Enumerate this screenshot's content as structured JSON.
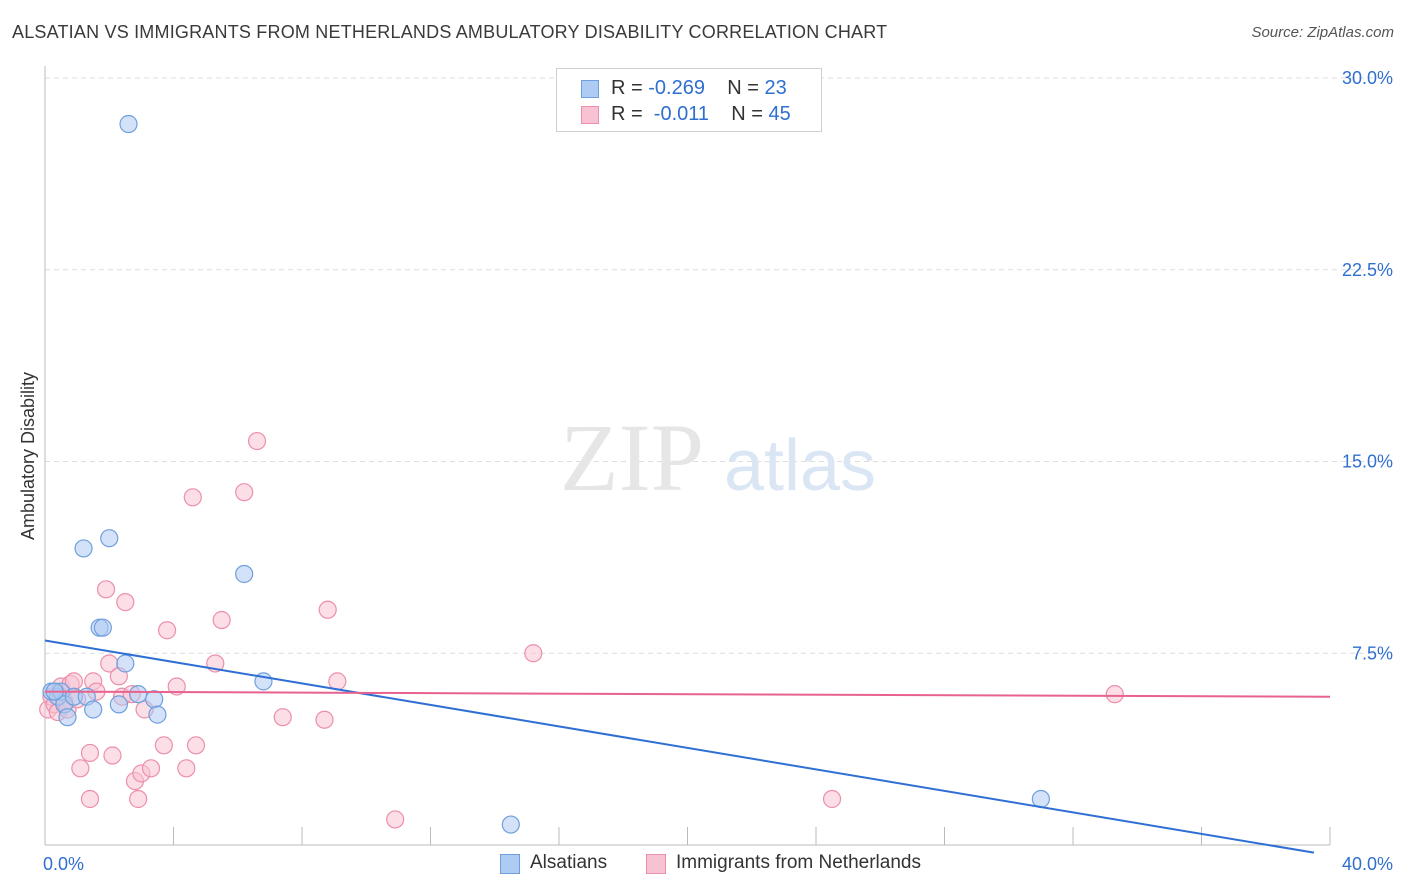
{
  "title": "ALSATIAN VS IMMIGRANTS FROM NETHERLANDS AMBULATORY DISABILITY CORRELATION CHART",
  "source": "Source: ZipAtlas.com",
  "watermark": {
    "zip": "ZIP",
    "atlas": "atlas"
  },
  "colors": {
    "blue_fill": "#aecbf3",
    "blue_stroke": "#6f9fdc",
    "blue_line": "#2e6fd4",
    "pink_fill": "#f8c2d2",
    "pink_stroke": "#ec8fab",
    "pink_line": "#e8628f",
    "tick_label": "#2f6fd0",
    "grid": "#dddddd"
  },
  "legend": {
    "rows": [
      {
        "r_label": "R = ",
        "r_value": "-0.269",
        "n_label": "N = ",
        "n_value": "23"
      },
      {
        "r_label": "R = ",
        "r_value": " -0.011",
        "n_label": "N = ",
        "n_value": "45"
      }
    ]
  },
  "bottom_legend": {
    "series1": "Alsatians",
    "series2": "Immigrants from Netherlands"
  },
  "chart_data": {
    "type": "scatter",
    "title": "ALSATIAN VS IMMIGRANTS FROM NETHERLANDS AMBULATORY DISABILITY CORRELATION CHART",
    "xlabel": "",
    "ylabel": "Ambulatory Disability",
    "xlim": [
      0,
      40
    ],
    "ylim": [
      0,
      30
    ],
    "x_tick_labels": [
      "0.0%",
      "40.0%"
    ],
    "y_ticks": [
      7.5,
      15.0,
      22.5,
      30.0
    ],
    "y_tick_labels": [
      "7.5%",
      "15.0%",
      "22.5%",
      "30.0%"
    ],
    "grid": true,
    "legend_placement": "top-center",
    "series": [
      {
        "name": "Alsatians",
        "color": "#6f9fdc",
        "r": -0.269,
        "n": 23,
        "trend": {
          "x": [
            0,
            39.5
          ],
          "y": [
            8.0,
            -0.3
          ]
        },
        "points": [
          {
            "x": 0.2,
            "y": 6.0
          },
          {
            "x": 0.4,
            "y": 5.8
          },
          {
            "x": 0.5,
            "y": 6.0
          },
          {
            "x": 0.6,
            "y": 5.5
          },
          {
            "x": 0.7,
            "y": 5.0
          },
          {
            "x": 0.9,
            "y": 5.8
          },
          {
            "x": 1.2,
            "y": 11.6
          },
          {
            "x": 1.3,
            "y": 5.8
          },
          {
            "x": 1.5,
            "y": 5.3
          },
          {
            "x": 1.7,
            "y": 8.5
          },
          {
            "x": 1.8,
            "y": 8.5
          },
          {
            "x": 2.0,
            "y": 12.0
          },
          {
            "x": 2.3,
            "y": 5.5
          },
          {
            "x": 2.5,
            "y": 7.1
          },
          {
            "x": 2.9,
            "y": 5.9
          },
          {
            "x": 2.6,
            "y": 28.2
          },
          {
            "x": 3.4,
            "y": 5.7
          },
          {
            "x": 3.5,
            "y": 5.1
          },
          {
            "x": 6.2,
            "y": 10.6
          },
          {
            "x": 6.8,
            "y": 6.4
          },
          {
            "x": 14.5,
            "y": 0.8
          },
          {
            "x": 31.0,
            "y": 1.8
          },
          {
            "x": 0.3,
            "y": 6.0
          }
        ]
      },
      {
        "name": "Immigrants from Netherlands",
        "color": "#ec8fab",
        "r": -0.011,
        "n": 45,
        "trend": {
          "x": [
            0,
            40
          ],
          "y": [
            6.0,
            5.8
          ]
        },
        "points": [
          {
            "x": 0.1,
            "y": 5.3
          },
          {
            "x": 0.2,
            "y": 5.8
          },
          {
            "x": 0.3,
            "y": 5.5
          },
          {
            "x": 0.4,
            "y": 5.2
          },
          {
            "x": 0.5,
            "y": 6.2
          },
          {
            "x": 0.6,
            "y": 5.6
          },
          {
            "x": 0.7,
            "y": 5.3
          },
          {
            "x": 0.8,
            "y": 6.3
          },
          {
            "x": 0.9,
            "y": 6.4
          },
          {
            "x": 1.0,
            "y": 5.7
          },
          {
            "x": 1.1,
            "y": 3.0
          },
          {
            "x": 1.4,
            "y": 3.6
          },
          {
            "x": 1.4,
            "y": 1.8
          },
          {
            "x": 1.5,
            "y": 6.4
          },
          {
            "x": 1.6,
            "y": 6.0
          },
          {
            "x": 1.9,
            "y": 10.0
          },
          {
            "x": 2.0,
            "y": 7.1
          },
          {
            "x": 2.1,
            "y": 3.5
          },
          {
            "x": 2.3,
            "y": 6.6
          },
          {
            "x": 2.4,
            "y": 5.8
          },
          {
            "x": 2.5,
            "y": 9.5
          },
          {
            "x": 2.7,
            "y": 5.9
          },
          {
            "x": 2.8,
            "y": 2.5
          },
          {
            "x": 2.9,
            "y": 1.8
          },
          {
            "x": 3.0,
            "y": 2.8
          },
          {
            "x": 3.1,
            "y": 5.3
          },
          {
            "x": 3.3,
            "y": 3.0
          },
          {
            "x": 3.7,
            "y": 3.9
          },
          {
            "x": 3.8,
            "y": 8.4
          },
          {
            "x": 4.1,
            "y": 6.2
          },
          {
            "x": 4.4,
            "y": 3.0
          },
          {
            "x": 4.6,
            "y": 13.6
          },
          {
            "x": 4.7,
            "y": 3.9
          },
          {
            "x": 5.3,
            "y": 7.1
          },
          {
            "x": 5.5,
            "y": 8.8
          },
          {
            "x": 6.2,
            "y": 13.8
          },
          {
            "x": 6.6,
            "y": 15.8
          },
          {
            "x": 7.4,
            "y": 5.0
          },
          {
            "x": 8.7,
            "y": 4.9
          },
          {
            "x": 8.8,
            "y": 9.2
          },
          {
            "x": 9.1,
            "y": 6.4
          },
          {
            "x": 10.9,
            "y": 1.0
          },
          {
            "x": 15.2,
            "y": 7.5
          },
          {
            "x": 24.5,
            "y": 1.8
          },
          {
            "x": 33.3,
            "y": 5.9
          }
        ]
      }
    ]
  }
}
